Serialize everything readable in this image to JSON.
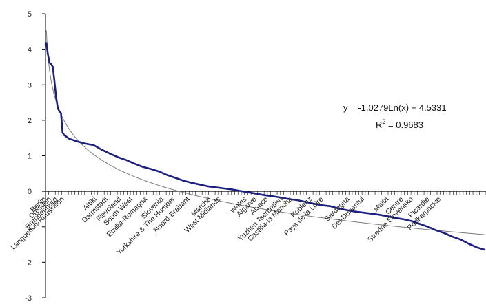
{
  "chart_data": {
    "type": "line",
    "title": "",
    "xlabel": "",
    "ylabel": "",
    "ylim": [
      -3,
      5
    ],
    "yticks": [
      -3,
      -2,
      -1,
      0,
      1,
      2,
      3,
      4,
      5
    ],
    "grid": false,
    "legend": "none",
    "n_points": 270,
    "category_labels": [
      {
        "label": "Berlin",
        "index": 1
      },
      {
        "label": "Dresden",
        "index": 4
      },
      {
        "label": "Brandenburg",
        "index": 8
      },
      {
        "label": "Languedoc-Roussillon",
        "index": 12
      },
      {
        "label": "Attiki",
        "index": 32
      },
      {
        "label": "Darmstadt",
        "index": 39
      },
      {
        "label": "Flevoland",
        "index": 47
      },
      {
        "label": "South West",
        "index": 54
      },
      {
        "label": "Emilia-Romagna",
        "index": 63
      },
      {
        "label": "Slovenia",
        "index": 73
      },
      {
        "label": "Yorkshire & The Humber",
        "index": 80
      },
      {
        "label": "Noord-Brabant",
        "index": 89
      },
      {
        "label": "Marche",
        "index": 102
      },
      {
        "label": "West Midlands",
        "index": 108
      },
      {
        "label": "Wales",
        "index": 124
      },
      {
        "label": "Algarve",
        "index": 130
      },
      {
        "label": "Alsace",
        "index": 137
      },
      {
        "label": "Yuzhen Tsentralen",
        "index": 146
      },
      {
        "label": "Castilla-la Mancha",
        "index": 152
      },
      {
        "label": "Koblenz",
        "index": 164
      },
      {
        "label": "Pays de la Loire",
        "index": 171
      },
      {
        "label": "Sardegna",
        "index": 187
      },
      {
        "label": "Del-Dunantul",
        "index": 196
      },
      {
        "label": "Malta",
        "index": 211
      },
      {
        "label": "Centre",
        "index": 220
      },
      {
        "label": "Stredne Slovensko",
        "index": 226
      },
      {
        "label": "Picardie",
        "index": 236
      },
      {
        "label": "Podkarpackie",
        "index": 243
      }
    ],
    "series": [
      {
        "type": "line",
        "color": "#1c1f80",
        "points": [
          [
            1,
            4.2
          ],
          [
            2,
            3.85
          ],
          [
            3,
            3.62
          ],
          [
            4,
            3.58
          ],
          [
            5,
            3.5
          ],
          [
            6,
            3.1
          ],
          [
            7,
            2.65
          ],
          [
            8,
            2.35
          ],
          [
            9,
            2.25
          ],
          [
            10,
            2.2
          ],
          [
            11,
            1.65
          ],
          [
            12,
            1.58
          ],
          [
            15,
            1.48
          ],
          [
            20,
            1.4
          ],
          [
            25,
            1.34
          ],
          [
            30,
            1.3
          ],
          [
            35,
            1.17
          ],
          [
            40,
            1.06
          ],
          [
            45,
            0.96
          ],
          [
            50,
            0.88
          ],
          [
            55,
            0.78
          ],
          [
            60,
            0.69
          ],
          [
            65,
            0.63
          ],
          [
            70,
            0.56
          ],
          [
            75,
            0.46
          ],
          [
            80,
            0.38
          ],
          [
            85,
            0.3
          ],
          [
            90,
            0.24
          ],
          [
            95,
            0.19
          ],
          [
            100,
            0.14
          ],
          [
            105,
            0.11
          ],
          [
            110,
            0.08
          ],
          [
            115,
            0.05
          ],
          [
            120,
            0.01
          ],
          [
            125,
            -0.03
          ],
          [
            130,
            -0.07
          ],
          [
            135,
            -0.11
          ],
          [
            140,
            -0.14
          ],
          [
            145,
            -0.18
          ],
          [
            150,
            -0.22
          ],
          [
            155,
            -0.25
          ],
          [
            160,
            -0.3
          ],
          [
            165,
            -0.35
          ],
          [
            170,
            -0.39
          ],
          [
            175,
            -0.42
          ],
          [
            180,
            -0.48
          ],
          [
            185,
            -0.53
          ],
          [
            190,
            -0.57
          ],
          [
            195,
            -0.6
          ],
          [
            200,
            -0.63
          ],
          [
            205,
            -0.66
          ],
          [
            210,
            -0.7
          ],
          [
            215,
            -0.75
          ],
          [
            220,
            -0.79
          ],
          [
            225,
            -0.84
          ],
          [
            230,
            -0.92
          ],
          [
            235,
            -1.0
          ],
          [
            240,
            -1.1
          ],
          [
            245,
            -1.18
          ],
          [
            250,
            -1.28
          ],
          [
            255,
            -1.36
          ],
          [
            260,
            -1.48
          ],
          [
            265,
            -1.58
          ],
          [
            270,
            -1.65
          ]
        ]
      },
      {
        "type": "trendline",
        "fit": "logarithmic",
        "color": "#7a7a7a",
        "a": -1.0279,
        "b": 4.5331
      }
    ],
    "annotations": {
      "equation": "y = -1.0279Ln(x) + 4.5331",
      "r2_base": "R",
      "r2_sup": "2",
      "r2_rest": " = 0.9683"
    }
  }
}
